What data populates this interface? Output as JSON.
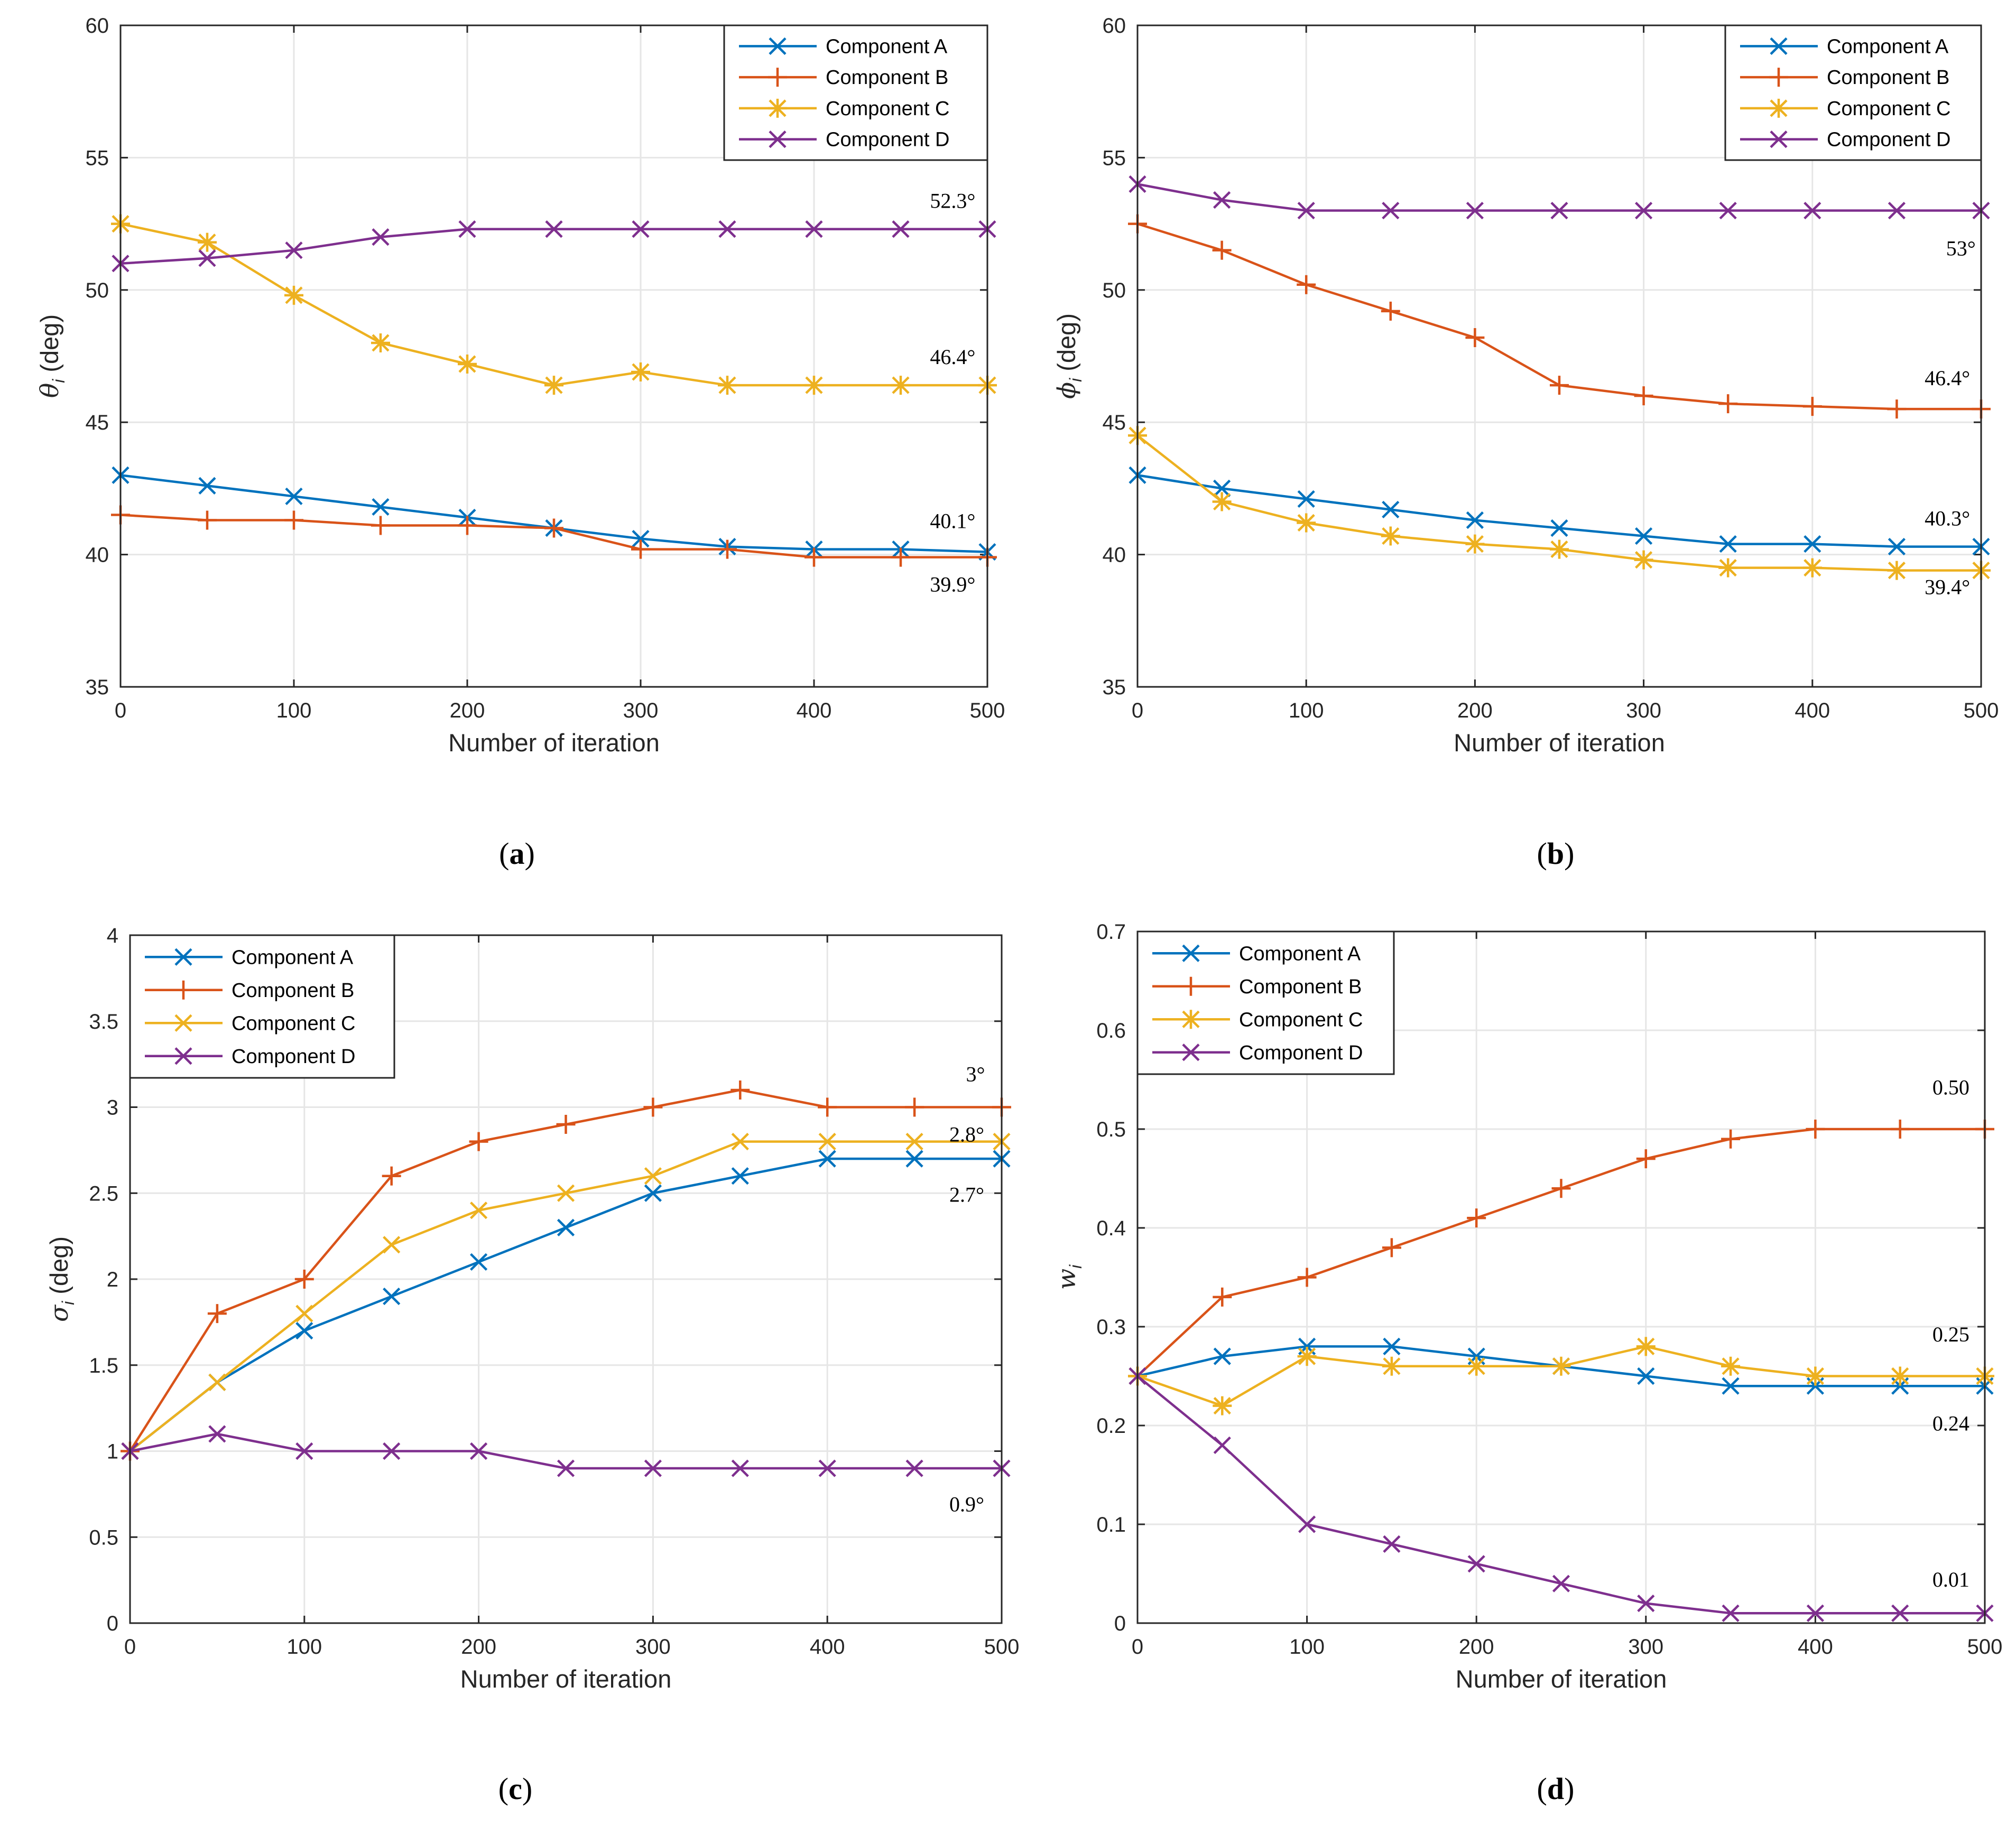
{
  "colors": {
    "A": "#0072BD",
    "B": "#D95319",
    "C": "#EDB120",
    "D": "#7E2F8E"
  },
  "chart_data": [
    {
      "type": "line",
      "caption": "a",
      "xlabel": "Number of iteration",
      "ylabel": "θ",
      "ylabel_sub": "i",
      "ylabel_unit": " (deg)",
      "xlim": [
        0,
        500
      ],
      "ylim": [
        35,
        60
      ],
      "xticks": [
        0,
        100,
        200,
        300,
        400,
        500
      ],
      "yticks": [
        35,
        40,
        45,
        50,
        55,
        60
      ],
      "grid": true,
      "legend": "top-right",
      "x": [
        0,
        50,
        100,
        150,
        200,
        250,
        300,
        350,
        400,
        450,
        500
      ],
      "series": [
        {
          "name": "Component A",
          "key": "A",
          "marker": "x",
          "values": [
            43.0,
            42.6,
            42.2,
            41.8,
            41.4,
            41.0,
            40.6,
            40.3,
            40.2,
            40.2,
            40.1
          ]
        },
        {
          "name": "Component B",
          "key": "B",
          "marker": "+",
          "values": [
            41.5,
            41.3,
            41.3,
            41.1,
            41.1,
            41.0,
            40.2,
            40.2,
            39.9,
            39.9,
            39.9
          ]
        },
        {
          "name": "Component C",
          "key": "C",
          "marker": "*",
          "values": [
            52.5,
            51.8,
            49.8,
            48.0,
            47.2,
            46.4,
            46.9,
            46.4,
            46.4,
            46.4,
            46.4
          ]
        },
        {
          "name": "Component D",
          "key": "D",
          "marker": "x",
          "values": [
            51.0,
            51.2,
            51.5,
            52.0,
            52.3,
            52.3,
            52.3,
            52.3,
            52.3,
            52.3,
            52.3
          ]
        }
      ],
      "annotations": [
        {
          "text": "52.3°",
          "x": 480,
          "y": 53.1
        },
        {
          "text": "46.4°",
          "x": 480,
          "y": 47.2
        },
        {
          "text": "40.1°",
          "x": 480,
          "y": 41.0
        },
        {
          "text": "39.9°",
          "x": 480,
          "y": 38.6
        }
      ]
    },
    {
      "type": "line",
      "caption": "b",
      "xlabel": "Number of iteration",
      "ylabel": "ϕ",
      "ylabel_sub": "i",
      "ylabel_unit": " (deg)",
      "xlim": [
        0,
        500
      ],
      "ylim": [
        35,
        60
      ],
      "xticks": [
        0,
        100,
        200,
        300,
        400,
        500
      ],
      "yticks": [
        35,
        40,
        45,
        50,
        55,
        60
      ],
      "grid": true,
      "legend": "top-right",
      "x": [
        0,
        50,
        100,
        150,
        200,
        250,
        300,
        350,
        400,
        450,
        500
      ],
      "series": [
        {
          "name": "Component A",
          "key": "A",
          "marker": "x",
          "values": [
            43.0,
            42.5,
            42.1,
            41.7,
            41.3,
            41.0,
            40.7,
            40.4,
            40.4,
            40.3,
            40.3
          ]
        },
        {
          "name": "Component B",
          "key": "B",
          "marker": "+",
          "values": [
            52.5,
            51.5,
            50.2,
            49.2,
            48.2,
            46.4,
            46.0,
            45.7,
            45.6,
            45.5,
            45.5
          ]
        },
        {
          "name": "Component C",
          "key": "C",
          "marker": "*",
          "values": [
            44.5,
            42.0,
            41.2,
            40.7,
            40.4,
            40.2,
            39.8,
            39.5,
            39.5,
            39.4,
            39.4
          ]
        },
        {
          "name": "Component D",
          "key": "D",
          "marker": "x",
          "values": [
            54.0,
            53.4,
            53.0,
            53.0,
            53.0,
            53.0,
            53.0,
            53.0,
            53.0,
            53.0,
            53.0
          ]
        }
      ],
      "annotations": [
        {
          "text": "53°",
          "x": 488,
          "y": 51.3
        },
        {
          "text": "46.4°",
          "x": 480,
          "y": 46.4
        },
        {
          "text": "40.3°",
          "x": 480,
          "y": 41.1
        },
        {
          "text": "39.4°",
          "x": 480,
          "y": 38.5
        }
      ]
    },
    {
      "type": "line",
      "caption": "c",
      "xlabel": "Number of iteration",
      "ylabel": "σ",
      "ylabel_sub": "i",
      "ylabel_unit": " (deg)",
      "xlim": [
        0,
        500
      ],
      "ylim": [
        0,
        4
      ],
      "xticks": [
        0,
        100,
        200,
        300,
        400,
        500
      ],
      "yticks": [
        0,
        0.5,
        1,
        1.5,
        2,
        2.5,
        3,
        3.5,
        4
      ],
      "grid": true,
      "legend": "top-left",
      "x": [
        0,
        50,
        100,
        150,
        200,
        250,
        300,
        350,
        400,
        450,
        500
      ],
      "series": [
        {
          "name": "Component A",
          "key": "A",
          "marker": "x",
          "values": [
            1.0,
            1.4,
            1.7,
            1.9,
            2.1,
            2.3,
            2.5,
            2.6,
            2.7,
            2.7,
            2.7
          ]
        },
        {
          "name": "Component B",
          "key": "B",
          "marker": "+",
          "values": [
            1.0,
            1.8,
            2.0,
            2.6,
            2.8,
            2.9,
            3.0,
            3.1,
            3.0,
            3.0,
            3.0
          ]
        },
        {
          "name": "Component C",
          "key": "C",
          "marker": "x",
          "values": [
            1.0,
            1.4,
            1.8,
            2.2,
            2.4,
            2.5,
            2.6,
            2.8,
            2.8,
            2.8,
            2.8
          ]
        },
        {
          "name": "Component D",
          "key": "D",
          "marker": "x",
          "values": [
            1.0,
            1.1,
            1.0,
            1.0,
            1.0,
            0.9,
            0.9,
            0.9,
            0.9,
            0.9,
            0.9
          ]
        }
      ],
      "annotations": [
        {
          "text": "3°",
          "x": 485,
          "y": 3.15
        },
        {
          "text": "2.8°",
          "x": 480,
          "y": 2.8
        },
        {
          "text": "2.7°",
          "x": 480,
          "y": 2.45
        },
        {
          "text": "0.9°",
          "x": 480,
          "y": 0.65
        }
      ]
    },
    {
      "type": "line",
      "caption": "d",
      "xlabel": "Number of iteration",
      "ylabel": "w",
      "ylabel_sub": "i",
      "ylabel_unit": "",
      "xlim": [
        0,
        500
      ],
      "ylim": [
        0,
        0.7
      ],
      "xticks": [
        0,
        100,
        200,
        300,
        400,
        500
      ],
      "yticks": [
        0,
        0.1,
        0.2,
        0.3,
        0.4,
        0.5,
        0.6,
        0.7
      ],
      "grid": true,
      "legend": "top-left",
      "x": [
        0,
        50,
        100,
        150,
        200,
        250,
        300,
        350,
        400,
        450,
        500
      ],
      "series": [
        {
          "name": "Component A",
          "key": "A",
          "marker": "x",
          "values": [
            0.25,
            0.27,
            0.28,
            0.28,
            0.27,
            0.26,
            0.25,
            0.24,
            0.24,
            0.24,
            0.24
          ]
        },
        {
          "name": "Component B",
          "key": "B",
          "marker": "+",
          "values": [
            0.25,
            0.33,
            0.35,
            0.38,
            0.41,
            0.44,
            0.47,
            0.49,
            0.5,
            0.5,
            0.5
          ]
        },
        {
          "name": "Component C",
          "key": "C",
          "marker": "*",
          "values": [
            0.25,
            0.22,
            0.27,
            0.26,
            0.26,
            0.26,
            0.28,
            0.26,
            0.25,
            0.25,
            0.25
          ]
        },
        {
          "name": "Component D",
          "key": "D",
          "marker": "x",
          "values": [
            0.25,
            0.18,
            0.1,
            0.08,
            0.06,
            0.04,
            0.02,
            0.01,
            0.01,
            0.01,
            0.01
          ]
        }
      ],
      "annotations": [
        {
          "text": "0.50",
          "x": 480,
          "y": 0.535
        },
        {
          "text": "0.25",
          "x": 480,
          "y": 0.285
        },
        {
          "text": "0.24",
          "x": 480,
          "y": 0.195
        },
        {
          "text": "0.01",
          "x": 480,
          "y": 0.037
        }
      ]
    }
  ]
}
